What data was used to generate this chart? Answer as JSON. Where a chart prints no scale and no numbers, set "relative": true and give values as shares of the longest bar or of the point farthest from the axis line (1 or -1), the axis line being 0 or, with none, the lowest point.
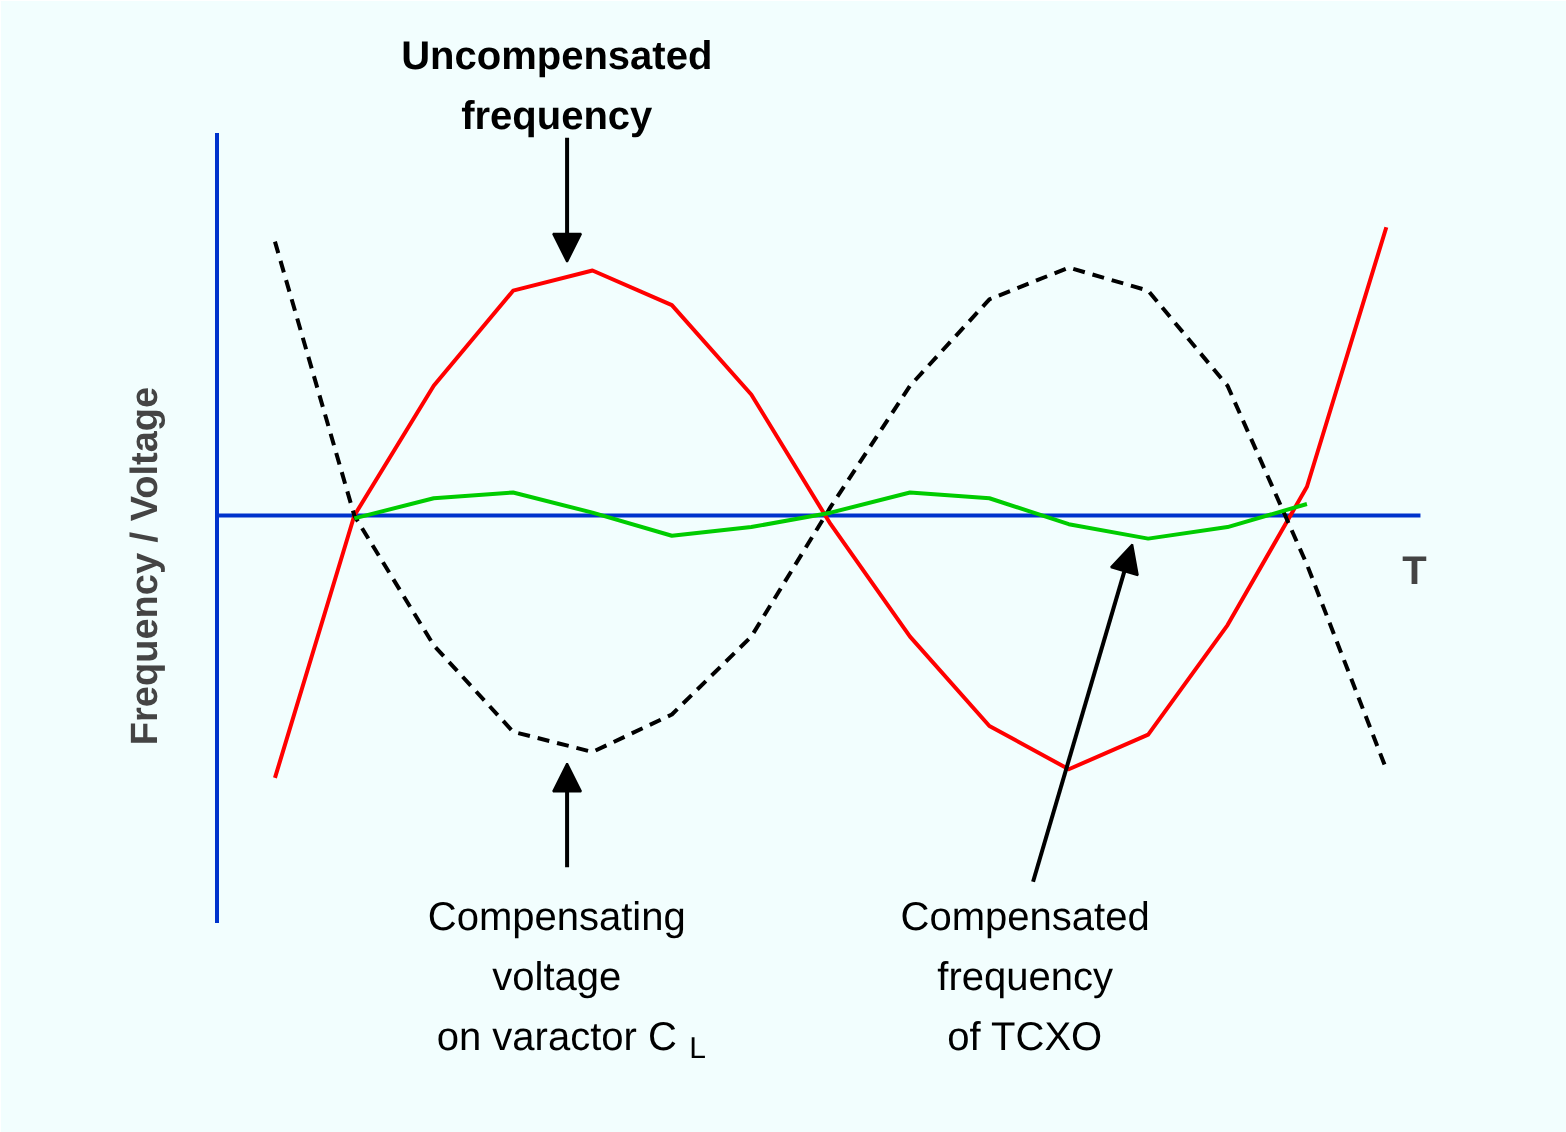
{
  "chart_data": {
    "type": "line",
    "relative": true,
    "categories": [
      null,
      null,
      null,
      null,
      null,
      null,
      null,
      null,
      null,
      null,
      null,
      null,
      null,
      null,
      null
    ],
    "series": [
      {
        "color": "#ff0000",
        "line_style": "solid",
        "values": [
          -0.91,
          0,
          0.45,
          0.78,
          0.85,
          0.73,
          0.42,
          -0.03,
          -0.42,
          -0.73,
          -0.88,
          -0.76,
          -0.38,
          0.1,
          1.0
        ]
      },
      {
        "color": "#000000",
        "line_style": "dashed",
        "values": [
          0.95,
          0,
          -0.45,
          -0.75,
          -0.82,
          -0.69,
          -0.42,
          0.03,
          0.45,
          0.75,
          0.86,
          0.78,
          0.45,
          -0.17,
          -0.88
        ]
      },
      {
        "color": "#00cc00",
        "line_style": "solid",
        "values": [
          null,
          -0.01,
          0.06,
          0.08,
          0.01,
          -0.07,
          -0.04,
          0.01,
          0.08,
          0.06,
          -0.03,
          -0.08,
          -0.04,
          0.04,
          null
        ]
      }
    ],
    "ref_lines": [
      {
        "axis": "y",
        "value": 0,
        "color": "#0033cc"
      }
    ],
    "xlabel": "T",
    "ylabel": "Frequency / Voltage",
    "annotations": [
      "Uncompensated\nfrequency",
      "Compensating\nvoltage\non varactor C$_{L}$",
      "Compensated\nfrequency\nof TCXO"
    ]
  }
}
